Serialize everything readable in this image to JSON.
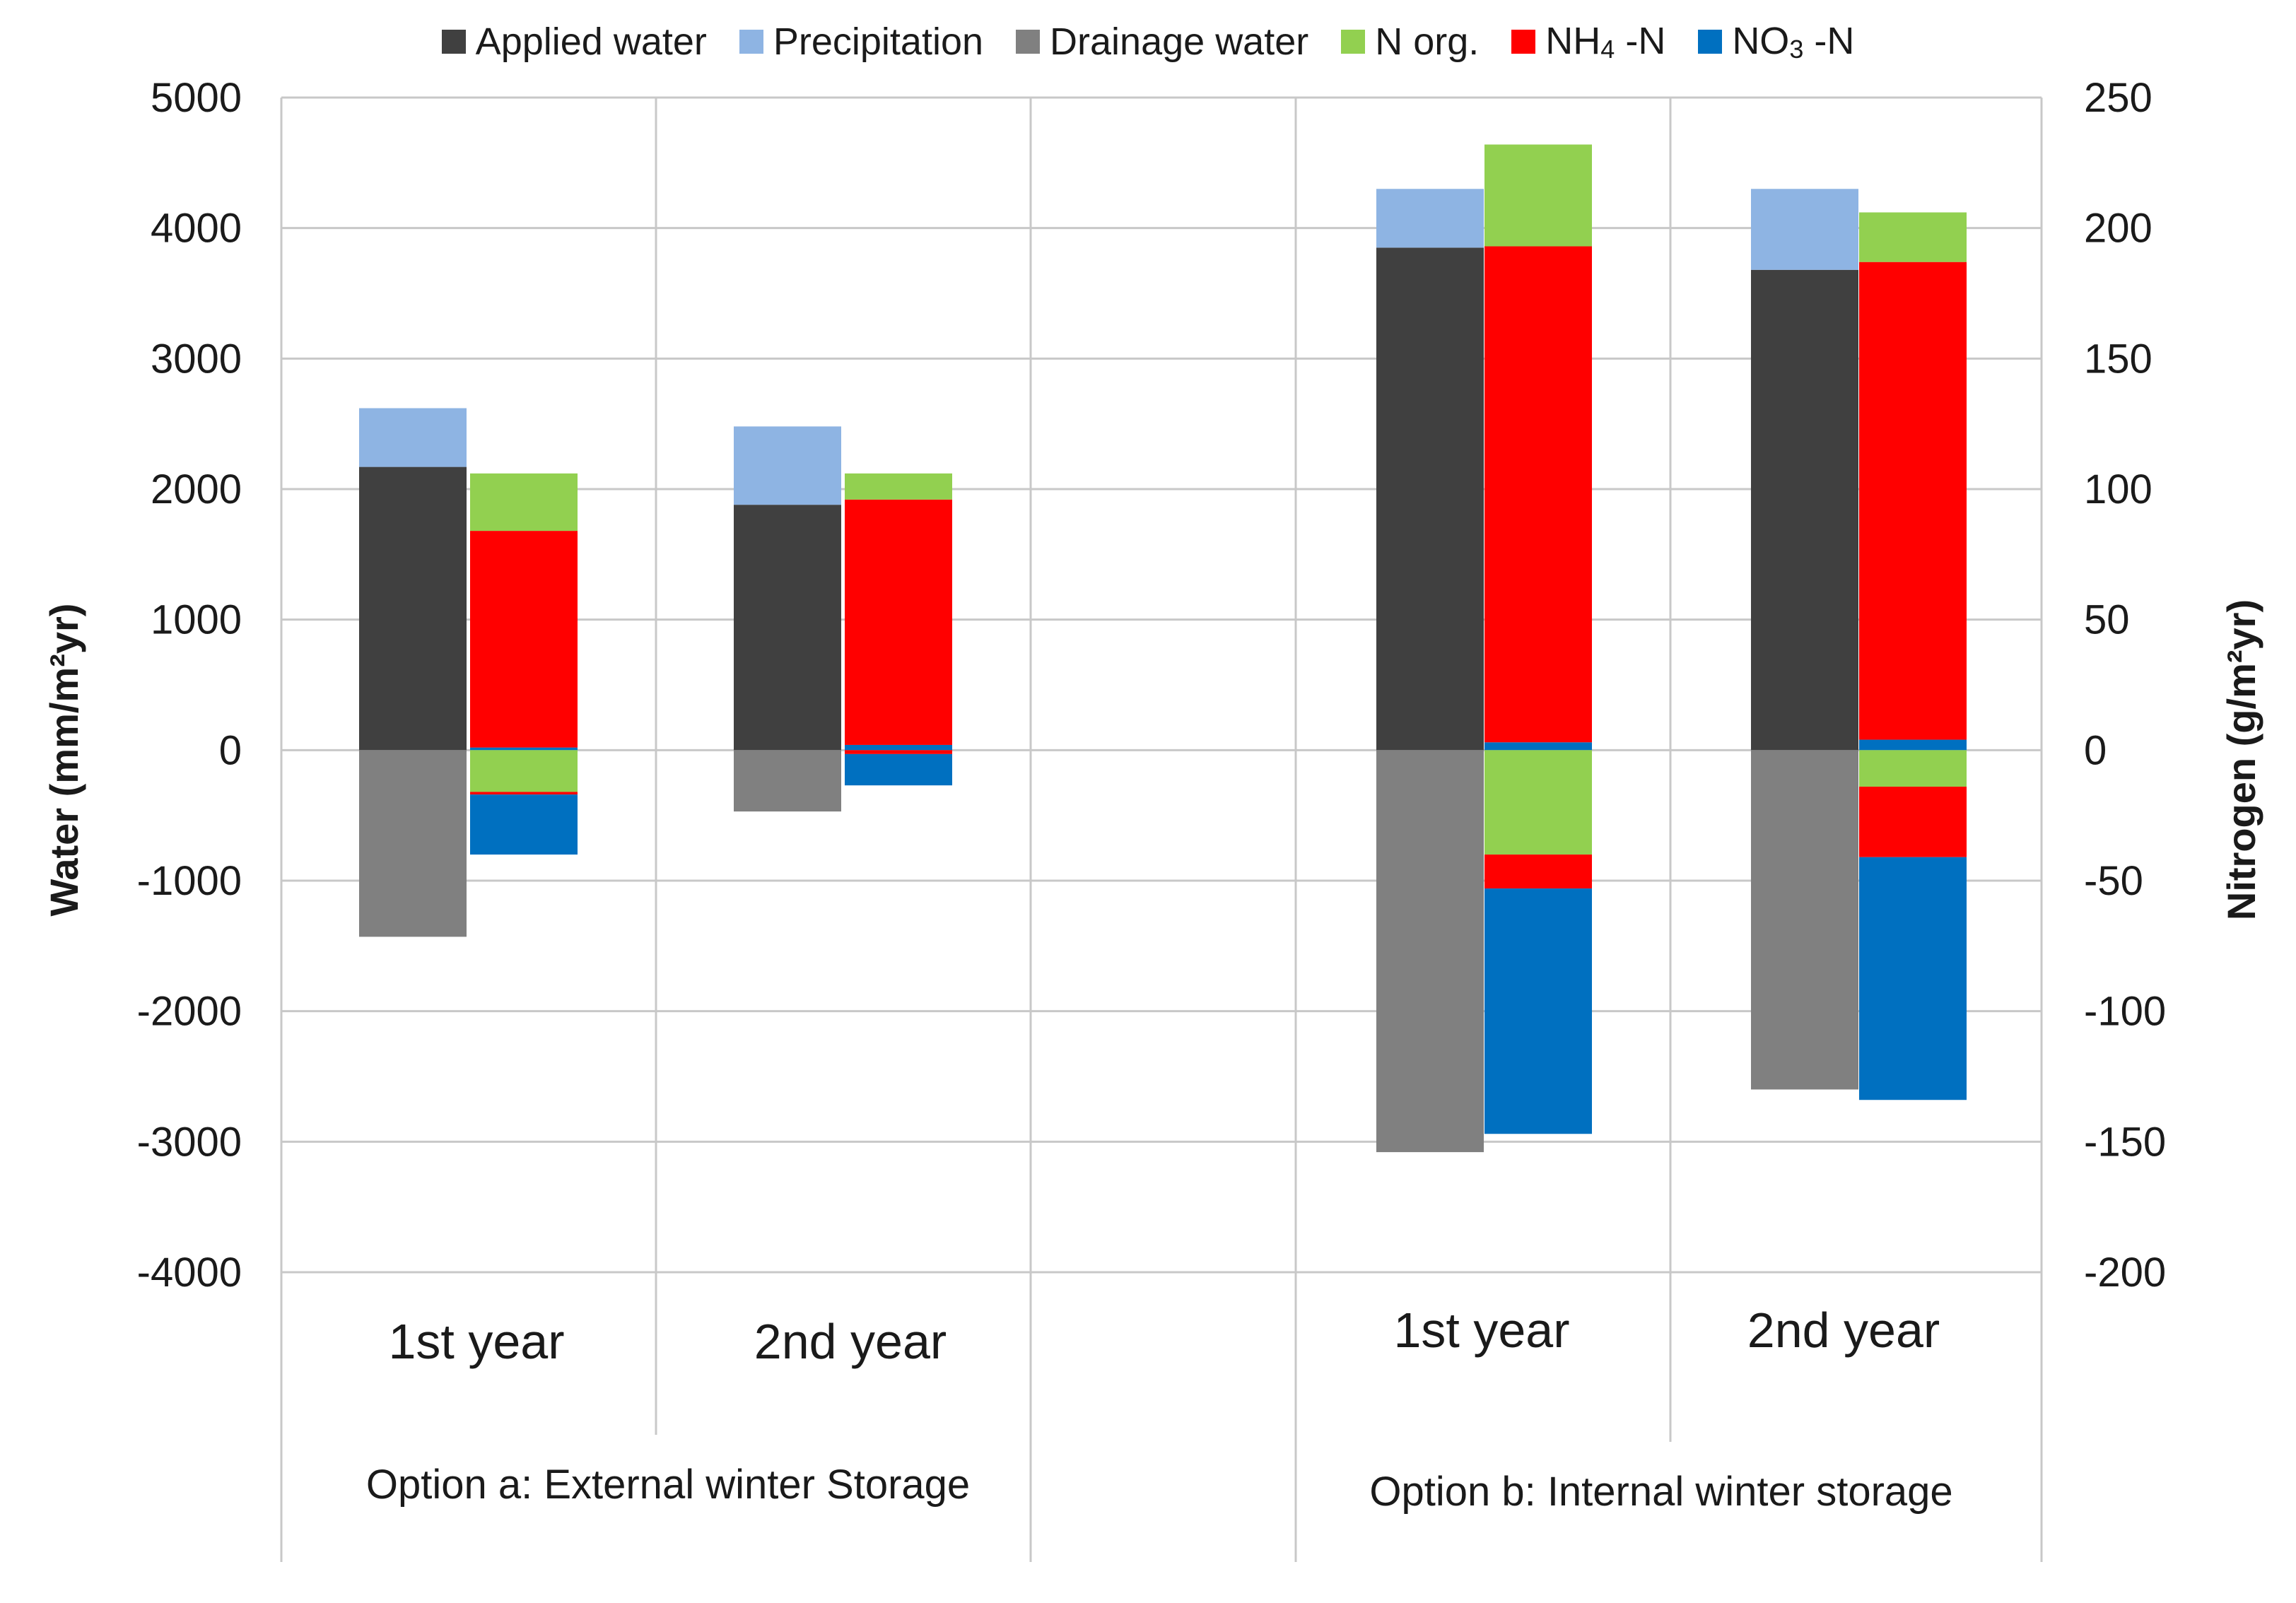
{
  "chart_data": {
    "type": "bar",
    "stacked": true,
    "title": "",
    "ylabel": "Water (mm/m²yr)",
    "y2label": "Nitrogen (g/m²yr)",
    "ylim": [
      -4000,
      5000
    ],
    "y2lim": [
      -200,
      250
    ],
    "yticks": [
      "5000",
      "4000",
      "3000",
      "2000",
      "1000",
      "0",
      "-1000",
      "-2000",
      "-3000",
      "-4000"
    ],
    "y2ticks": [
      "250",
      "200",
      "150",
      "100",
      "50",
      "0",
      "-50",
      "-100",
      "-150",
      "-200"
    ],
    "legend_position": "top",
    "legend": [
      {
        "key": "applied",
        "label": "Applied water",
        "color": "#404040"
      },
      {
        "key": "precip",
        "label": "Precipitation",
        "color": "#8eb4e3"
      },
      {
        "key": "drain",
        "label": "Drainage water",
        "color": "#808080"
      },
      {
        "key": "norg",
        "label": "N org.",
        "color": "#92d050"
      },
      {
        "key": "nh4",
        "label": "NH",
        "sub": "4",
        "suffix": " -N",
        "color": "#ff0000"
      },
      {
        "key": "no3",
        "label": "NO",
        "sub": "3",
        "suffix": " -N",
        "color": "#0070c0"
      }
    ],
    "groups": [
      {
        "label": "Option a: External winter Storage",
        "categories": [
          "1st year",
          "2nd year"
        ]
      },
      {
        "label": "Option b: Internal winter storage",
        "categories": [
          "1st year",
          "2nd year"
        ]
      }
    ],
    "water_unit": "mm/m²yr",
    "water": [
      {
        "category": "Option a 1st year",
        "applied": 2170,
        "precip": 450,
        "drain": -1430
      },
      {
        "category": "Option a 2nd year",
        "applied": 1880,
        "precip": 600,
        "drain": -470
      },
      {
        "category": "Option b 1st year",
        "applied": 3850,
        "precip": 450,
        "drain": -3080
      },
      {
        "category": "Option b 2nd year",
        "applied": 3680,
        "precip": 620,
        "drain": -2600
      }
    ],
    "nitrogen_unit": "g/m²yr",
    "nitrogen": [
      {
        "category": "Option a 1st year",
        "positive": {
          "no3": 1,
          "nh4": 83,
          "norg": 22
        },
        "negative": {
          "norg": -16,
          "nh4": -1,
          "no3": -23
        }
      },
      {
        "category": "Option a 2nd year",
        "positive": {
          "no3": 2,
          "nh4": 94,
          "norg": 10
        },
        "negative": {
          "norg": 0,
          "nh4": -1.5,
          "no3": -12
        }
      },
      {
        "category": "Option b 1st year",
        "positive": {
          "no3": 3,
          "nh4": 190,
          "norg": 39
        },
        "negative": {
          "norg": -40,
          "nh4": -13,
          "no3": -94
        }
      },
      {
        "category": "Option b 2nd year",
        "positive": {
          "no3": 4,
          "nh4": 183,
          "norg": 19
        },
        "negative": {
          "norg": -14,
          "nh4": -27,
          "no3": -93
        }
      }
    ]
  }
}
